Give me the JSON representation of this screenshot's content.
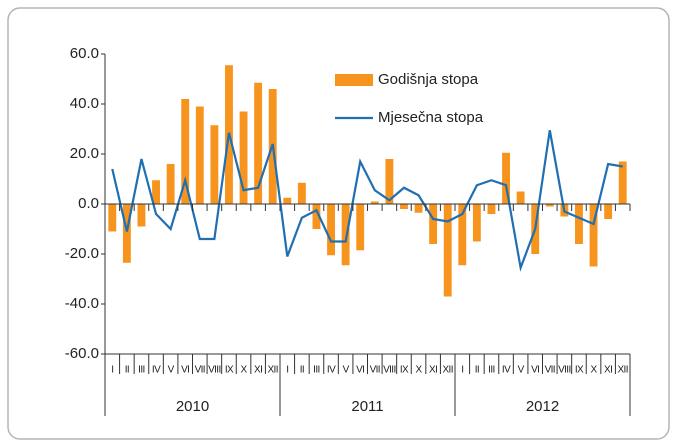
{
  "chart_data": {
    "type": "bar_line",
    "categories": [
      "I",
      "II",
      "III",
      "IV",
      "V",
      "VI",
      "VII",
      "VIII",
      "IX",
      "X",
      "XI",
      "XII",
      "I",
      "II",
      "III",
      "IV",
      "V",
      "VI",
      "VII",
      "VIII",
      "IX",
      "X",
      "XI",
      "XII",
      "I",
      "II",
      "III",
      "IV",
      "V",
      "VI",
      "VII",
      "VIII",
      "IX",
      "X",
      "XI",
      "XII"
    ],
    "years": [
      "2010",
      "2011",
      "2012"
    ],
    "series": [
      {
        "name": "Godišnja stopa",
        "color": "#f7941d",
        "kind": "bar",
        "values": [
          -11,
          -23.5,
          -9,
          9.5,
          16,
          42,
          39,
          31.5,
          55.5,
          37,
          48.5,
          46,
          2.5,
          8.5,
          -10,
          -20.5,
          -24.5,
          -18.5,
          1,
          18,
          -2,
          -3.5,
          -16,
          -37,
          -24.5,
          -15,
          -4,
          20.5,
          5,
          -20,
          -1,
          -5,
          -16,
          -25,
          -6,
          17
        ]
      },
      {
        "name": "Mjesečna stopa",
        "color": "#1f6fb2",
        "kind": "line",
        "values": [
          14,
          -11,
          18,
          -4,
          -10,
          9.5,
          -14,
          -14,
          28.5,
          5.5,
          6.5,
          24,
          -21,
          -5.5,
          -2.5,
          -15,
          -15,
          17,
          5.5,
          1.5,
          6.5,
          3.5,
          -6,
          -7,
          -4,
          7.5,
          9.5,
          7.5,
          -25.5,
          -10,
          29.5,
          -3,
          -5.5,
          -8,
          16,
          15
        ]
      }
    ],
    "ylim": [
      -60,
      60
    ],
    "yticks": [
      {
        "value": -60,
        "label": "-60.0"
      },
      {
        "value": -40,
        "label": "-40.0"
      },
      {
        "value": -20,
        "label": "-20.0"
      },
      {
        "value": 0,
        "label": "0.0"
      },
      {
        "value": 20,
        "label": "20.0"
      },
      {
        "value": 40,
        "label": "40.0"
      },
      {
        "value": 60,
        "label": "60.0"
      }
    ],
    "grid": false,
    "legend": "top"
  }
}
